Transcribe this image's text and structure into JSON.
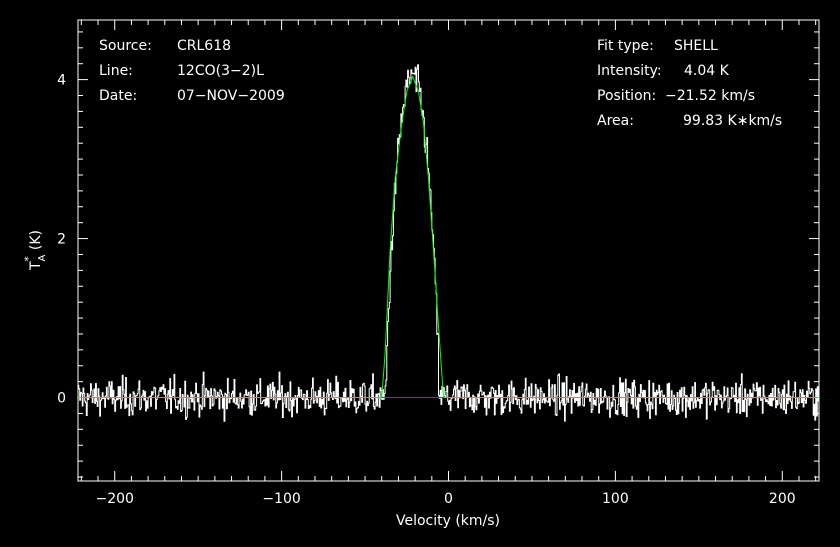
{
  "chart_data": {
    "type": "line",
    "xlabel": "Velocity (km/s)",
    "ylabel_main": "T",
    "ylabel_sub": "A",
    "ylabel_sup": "*",
    "ylabel_unit": "(K)",
    "xlim": [
      -222,
      222
    ],
    "ylim": [
      -1.05,
      4.75
    ],
    "x_ticks": [
      -200,
      -100,
      0,
      100,
      200
    ],
    "x_tick_labels": [
      "−200",
      "−100",
      "0",
      "100",
      "200"
    ],
    "y_ticks": [
      0,
      2,
      4
    ],
    "y_tick_labels": [
      "0",
      "2",
      "4"
    ],
    "x_minor_step": 10,
    "y_minor_step": 0.2,
    "grid": false,
    "colors": {
      "background": "#000000",
      "spectrum": "#ffffff",
      "fit": "#00ff00",
      "baseline_window": "#ff0000",
      "frame": "#ffffff"
    },
    "series": [
      {
        "name": "spectrum",
        "style": "histogram",
        "x_start": -222,
        "x_step": 0.5,
        "noise_rms": 0.2,
        "profile": {
          "center": -21.52,
          "half_width": 32,
          "peak": 4.04
        }
      },
      {
        "name": "fit",
        "style": "line",
        "x": [
          -222,
          -40,
          -38,
          -35,
          -32,
          -28,
          -25,
          -21.52,
          -18,
          -15,
          -12,
          -9,
          -6,
          -3,
          222
        ],
        "y": [
          0,
          0,
          0.55,
          1.85,
          2.75,
          3.45,
          3.85,
          4.04,
          3.85,
          3.45,
          2.75,
          1.85,
          0.9,
          0,
          0
        ]
      },
      {
        "name": "baseline-window",
        "style": "line",
        "x": [
          -40,
          -3
        ],
        "y": [
          0,
          0
        ]
      }
    ],
    "info_left": [
      {
        "label": "Source:",
        "value": "CRL618"
      },
      {
        "label": "Line:",
        "value": "12CO(3−2)L"
      },
      {
        "label": "Date:",
        "value": "07−NOV−2009"
      }
    ],
    "info_right": [
      {
        "label": "Fit type:",
        "value": "SHELL"
      },
      {
        "label": "Intensity:",
        "value": "4.04 K"
      },
      {
        "label": "Position:",
        "value": "−21.52 km/s"
      },
      {
        "label": "Area:",
        "value": "99.83 K∗km/s"
      }
    ]
  }
}
